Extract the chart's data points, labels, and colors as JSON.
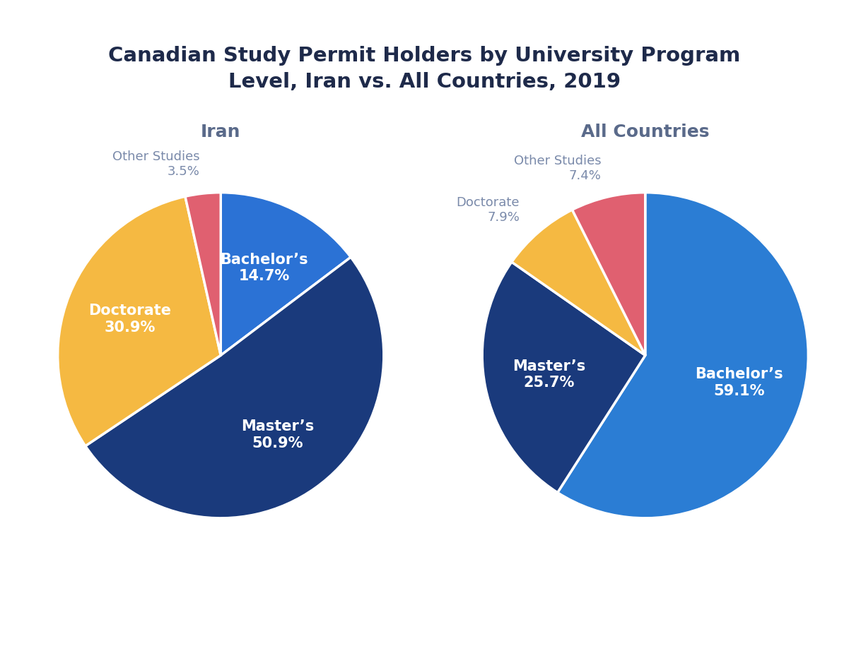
{
  "title": "Canadian Study Permit Holders by University Program\nLevel, Iran vs. All Countries, 2019",
  "title_color": "#1e2a4a",
  "title_fontsize": 21,
  "background_color": "#ffffff",
  "iran": {
    "subtitle": "Iran",
    "labels": [
      "Bachelor’s",
      "Master’s",
      "Doctorate",
      "Other Studies"
    ],
    "values": [
      14.7,
      50.9,
      30.9,
      3.5
    ],
    "colors": [
      "#2b72d5",
      "#1a3a7c",
      "#f5b942",
      "#e06070"
    ],
    "inside_labels": [
      true,
      true,
      true,
      false
    ],
    "label_colors": [
      "white",
      "white",
      "white",
      ""
    ],
    "startangle": 90
  },
  "all_countries": {
    "subtitle": "All Countries",
    "labels": [
      "Bachelor’s",
      "Master’s",
      "Doctorate",
      "Other Studies"
    ],
    "values": [
      59.1,
      25.7,
      7.9,
      7.4
    ],
    "colors": [
      "#2b7dd4",
      "#1a3a7c",
      "#f5b942",
      "#e06070"
    ],
    "inside_labels": [
      true,
      true,
      false,
      false
    ],
    "label_colors": [
      "white",
      "white",
      "",
      ""
    ],
    "startangle": 90
  },
  "subtitle_fontsize": 18,
  "subtitle_color": "#5a6a8a",
  "inside_label_fontsize": 15,
  "outside_label_fontsize": 13,
  "outside_label_color": "#7a8aaa",
  "wedge_linewidth": 2.5,
  "wedge_edgecolor": "#ffffff"
}
